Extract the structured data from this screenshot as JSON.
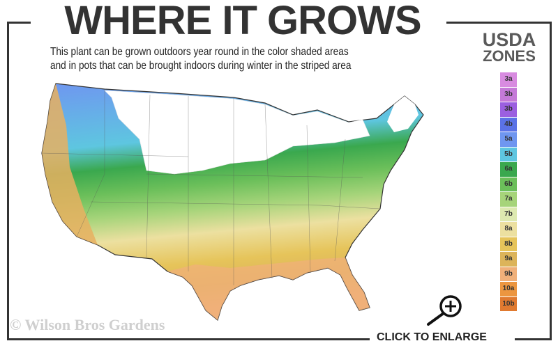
{
  "header": {
    "title": "WHERE IT GROWS",
    "subtitle_line1": "This plant can be grown outdoors year round in the color shaded areas",
    "subtitle_line2": "and in pots that can be brought indoors during winter in the striped area"
  },
  "legend": {
    "title_line1": "USDA",
    "title_line2": "ZONES",
    "zones": [
      {
        "label": "3a",
        "color": "#d88be0"
      },
      {
        "label": "3b",
        "color": "#c57ad8"
      },
      {
        "label": "3b",
        "color": "#9b5fe0"
      },
      {
        "label": "4b",
        "color": "#5b72e6"
      },
      {
        "label": "5a",
        "color": "#6f96f0"
      },
      {
        "label": "5b",
        "color": "#5ec6e0"
      },
      {
        "label": "6a",
        "color": "#3aa84e"
      },
      {
        "label": "6b",
        "color": "#6bbf5a"
      },
      {
        "label": "7a",
        "color": "#a6d47a"
      },
      {
        "label": "7b",
        "color": "#dde9b0"
      },
      {
        "label": "8a",
        "color": "#ece0a0"
      },
      {
        "label": "8b",
        "color": "#e6c45a"
      },
      {
        "label": "9a",
        "color": "#dcb45a"
      },
      {
        "label": "9b",
        "color": "#f0b07a"
      },
      {
        "label": "10a",
        "color": "#ec9640"
      },
      {
        "label": "10b",
        "color": "#e07a30"
      }
    ]
  },
  "footer": {
    "copyright": "© Wilson Bros Gardens",
    "enlarge_label": "CLICK TO ENLARGE"
  },
  "icons": {
    "enlarge": "magnifier-plus-icon"
  }
}
